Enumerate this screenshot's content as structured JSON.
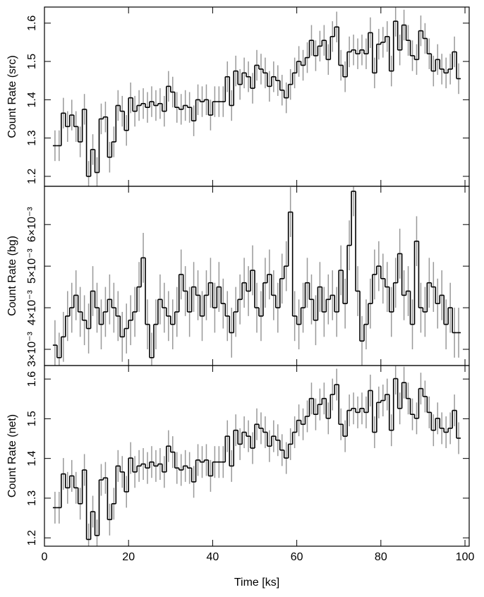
{
  "chart_data": [
    {
      "type": "step",
      "ylabel": "Count Rate (src)",
      "color": "#000000",
      "error_color": "#999999",
      "xlim": [
        0,
        101
      ],
      "xticks": [
        0,
        20,
        40,
        60,
        80,
        100
      ],
      "ylim": [
        1.174,
        1.642
      ],
      "yticks": [
        1.2,
        1.3,
        1.4,
        1.5,
        1.6
      ],
      "error": 0.04,
      "x": [
        2.5,
        3.5,
        4.5,
        5.5,
        6.5,
        7.5,
        8.5,
        9.5,
        10.5,
        11.5,
        12.5,
        13.5,
        14.5,
        15.5,
        16.5,
        17.5,
        18.5,
        19.5,
        20.5,
        21.5,
        22.5,
        23.5,
        24.5,
        25.5,
        26.5,
        27.5,
        28.5,
        29.5,
        30.5,
        31.5,
        32.5,
        33.5,
        34.5,
        35.5,
        36.5,
        37.5,
        38.5,
        39.5,
        40.5,
        41.5,
        42.5,
        43.5,
        44.5,
        45.5,
        46.5,
        47.5,
        48.5,
        49.5,
        50.5,
        51.5,
        52.5,
        53.5,
        54.5,
        55.5,
        56.5,
        57.5,
        58.5,
        59.5,
        60.5,
        61.5,
        62.5,
        63.5,
        64.5,
        65.5,
        66.5,
        67.5,
        68.5,
        69.5,
        70.5,
        71.5,
        72.5,
        73.5,
        74.5,
        75.5,
        76.5,
        77.5,
        78.5,
        79.5,
        80.5,
        81.5,
        82.5,
        83.5,
        84.5,
        85.5,
        86.5,
        87.5,
        88.5,
        89.5,
        90.5,
        91.5,
        92.5,
        93.5,
        94.5,
        95.5,
        96.5,
        97.5,
        98.5
      ],
      "values": [
        1.28,
        1.28,
        1.365,
        1.33,
        1.36,
        1.33,
        1.29,
        1.375,
        1.2,
        1.27,
        1.21,
        1.35,
        1.355,
        1.25,
        1.29,
        1.385,
        1.37,
        1.32,
        1.405,
        1.37,
        1.385,
        1.39,
        1.38,
        1.395,
        1.385,
        1.39,
        1.37,
        1.435,
        1.42,
        1.38,
        1.375,
        1.385,
        1.38,
        1.345,
        1.4,
        1.395,
        1.4,
        1.36,
        1.395,
        1.395,
        1.395,
        1.46,
        1.385,
        1.475,
        1.44,
        1.47,
        1.46,
        1.43,
        1.49,
        1.48,
        1.47,
        1.435,
        1.46,
        1.45,
        1.425,
        1.405,
        1.44,
        1.47,
        1.5,
        1.49,
        1.51,
        1.555,
        1.515,
        1.54,
        1.555,
        1.505,
        1.565,
        1.59,
        1.49,
        1.46,
        1.525,
        1.53,
        1.52,
        1.53,
        1.52,
        1.575,
        1.47,
        1.545,
        1.55,
        1.565,
        1.475,
        1.605,
        1.53,
        1.595,
        1.555,
        1.515,
        1.505,
        1.58,
        1.56,
        1.52,
        1.475,
        1.505,
        1.48,
        1.47,
        1.48,
        1.525,
        1.455
      ]
    },
    {
      "type": "step",
      "ylabel": "Count Rate (bg)",
      "color": "#000000",
      "error_color": "#999999",
      "xlim": [
        0,
        101
      ],
      "xticks": [
        0,
        20,
        40,
        60,
        80,
        100
      ],
      "ylim": [
        0.00261,
        0.00692
      ],
      "yticks": [
        {
          "value": 0.003,
          "label": "3×10⁻³"
        },
        {
          "value": 0.004,
          "label": "4×10⁻³"
        },
        {
          "value": 0.005,
          "label": "5×10⁻³"
        },
        {
          "value": 0.006,
          "label": "6×10⁻³"
        }
      ],
      "error": 0.0006,
      "x": [
        2.5,
        3.5,
        4.5,
        5.5,
        6.5,
        7.5,
        8.5,
        9.5,
        10.5,
        11.5,
        12.5,
        13.5,
        14.5,
        15.5,
        16.5,
        17.5,
        18.5,
        19.5,
        20.5,
        21.5,
        22.5,
        23.5,
        24.5,
        25.5,
        26.5,
        27.5,
        28.5,
        29.5,
        30.5,
        31.5,
        32.5,
        33.5,
        34.5,
        35.5,
        36.5,
        37.5,
        38.5,
        39.5,
        40.5,
        41.5,
        42.5,
        43.5,
        44.5,
        45.5,
        46.5,
        47.5,
        48.5,
        49.5,
        50.5,
        51.5,
        52.5,
        53.5,
        54.5,
        55.5,
        56.5,
        57.5,
        58.5,
        59.5,
        60.5,
        61.5,
        62.5,
        63.5,
        64.5,
        65.5,
        66.5,
        67.5,
        68.5,
        69.5,
        70.5,
        71.5,
        72.5,
        73.5,
        74.5,
        75.5,
        76.5,
        77.5,
        78.5,
        79.5,
        80.5,
        81.5,
        82.5,
        83.5,
        84.5,
        85.5,
        86.5,
        87.5,
        88.5,
        89.5,
        90.5,
        91.5,
        92.5,
        93.5,
        94.5,
        95.5,
        96.5,
        97.5,
        98.5
      ],
      "values": [
        0.0031,
        0.0028,
        0.0033,
        0.0038,
        0.004,
        0.0043,
        0.0039,
        0.0037,
        0.0035,
        0.0044,
        0.004,
        0.0036,
        0.0039,
        0.0042,
        0.004,
        0.0038,
        0.0033,
        0.0035,
        0.0037,
        0.0039,
        0.0045,
        0.0052,
        0.0036,
        0.0028,
        0.0036,
        0.0042,
        0.004,
        0.0038,
        0.0036,
        0.0039,
        0.0048,
        0.0044,
        0.0039,
        0.0045,
        0.0043,
        0.0038,
        0.0043,
        0.0046,
        0.004,
        0.0045,
        0.0041,
        0.0038,
        0.0034,
        0.0039,
        0.0042,
        0.0046,
        0.0044,
        0.0049,
        0.004,
        0.0038,
        0.0046,
        0.0048,
        0.0043,
        0.004,
        0.0047,
        0.005,
        0.0063,
        0.0038,
        0.0036,
        0.004,
        0.0046,
        0.0042,
        0.0037,
        0.0045,
        0.0039,
        0.0042,
        0.0043,
        0.0039,
        0.0049,
        0.0041,
        0.0055,
        0.0068,
        0.0044,
        0.0032,
        0.0036,
        0.0041,
        0.0048,
        0.005,
        0.0047,
        0.0045,
        0.0039,
        0.0046,
        0.0053,
        0.0043,
        0.0044,
        0.0036,
        0.0056,
        0.004,
        0.0039,
        0.0046,
        0.0045,
        0.0041,
        0.0043,
        0.0036,
        0.004,
        0.0034,
        0.0034
      ]
    },
    {
      "type": "step",
      "ylabel": "Count Rate (net)",
      "xlabel": "Time [ks]",
      "color": "#000000",
      "error_color": "#999999",
      "xlim": [
        0,
        101
      ],
      "xticks": [
        0,
        20,
        40,
        60,
        80,
        100
      ],
      "ylim": [
        1.179,
        1.634
      ],
      "yticks": [
        1.2,
        1.3,
        1.4,
        1.5,
        1.6
      ],
      "error": 0.04,
      "x": [
        2.5,
        3.5,
        4.5,
        5.5,
        6.5,
        7.5,
        8.5,
        9.5,
        10.5,
        11.5,
        12.5,
        13.5,
        14.5,
        15.5,
        16.5,
        17.5,
        18.5,
        19.5,
        20.5,
        21.5,
        22.5,
        23.5,
        24.5,
        25.5,
        26.5,
        27.5,
        28.5,
        29.5,
        30.5,
        31.5,
        32.5,
        33.5,
        34.5,
        35.5,
        36.5,
        37.5,
        38.5,
        39.5,
        40.5,
        41.5,
        42.5,
        43.5,
        44.5,
        45.5,
        46.5,
        47.5,
        48.5,
        49.5,
        50.5,
        51.5,
        52.5,
        53.5,
        54.5,
        55.5,
        56.5,
        57.5,
        58.5,
        59.5,
        60.5,
        61.5,
        62.5,
        63.5,
        64.5,
        65.5,
        66.5,
        67.5,
        68.5,
        69.5,
        70.5,
        71.5,
        72.5,
        73.5,
        74.5,
        75.5,
        76.5,
        77.5,
        78.5,
        79.5,
        80.5,
        81.5,
        82.5,
        83.5,
        84.5,
        85.5,
        86.5,
        87.5,
        88.5,
        89.5,
        90.5,
        91.5,
        92.5,
        93.5,
        94.5,
        95.5,
        96.5,
        97.5,
        98.5
      ],
      "values": [
        1.276,
        1.276,
        1.361,
        1.326,
        1.356,
        1.326,
        1.286,
        1.371,
        1.196,
        1.266,
        1.206,
        1.346,
        1.351,
        1.246,
        1.286,
        1.381,
        1.366,
        1.316,
        1.401,
        1.366,
        1.381,
        1.386,
        1.376,
        1.391,
        1.381,
        1.386,
        1.366,
        1.431,
        1.416,
        1.376,
        1.371,
        1.381,
        1.376,
        1.341,
        1.396,
        1.391,
        1.396,
        1.356,
        1.391,
        1.391,
        1.391,
        1.456,
        1.381,
        1.471,
        1.436,
        1.466,
        1.456,
        1.426,
        1.486,
        1.476,
        1.466,
        1.431,
        1.456,
        1.446,
        1.421,
        1.401,
        1.436,
        1.466,
        1.496,
        1.486,
        1.506,
        1.551,
        1.511,
        1.536,
        1.551,
        1.501,
        1.561,
        1.586,
        1.486,
        1.456,
        1.521,
        1.526,
        1.516,
        1.526,
        1.516,
        1.571,
        1.466,
        1.541,
        1.546,
        1.561,
        1.471,
        1.601,
        1.526,
        1.591,
        1.551,
        1.511,
        1.501,
        1.576,
        1.556,
        1.516,
        1.471,
        1.501,
        1.476,
        1.466,
        1.476,
        1.521,
        1.451
      ]
    }
  ]
}
